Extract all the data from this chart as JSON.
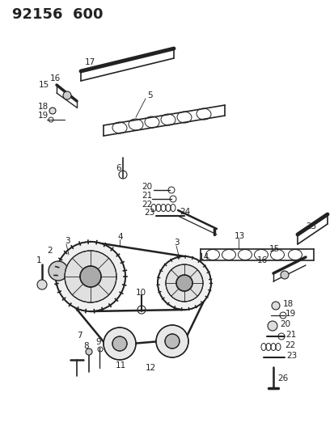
{
  "title": "92156  600",
  "bg_color": "#ffffff",
  "line_color": "#222222",
  "title_fontsize": 13,
  "label_fontsize": 7.5,
  "fig_width": 4.14,
  "fig_height": 5.33,
  "dpi": 100
}
